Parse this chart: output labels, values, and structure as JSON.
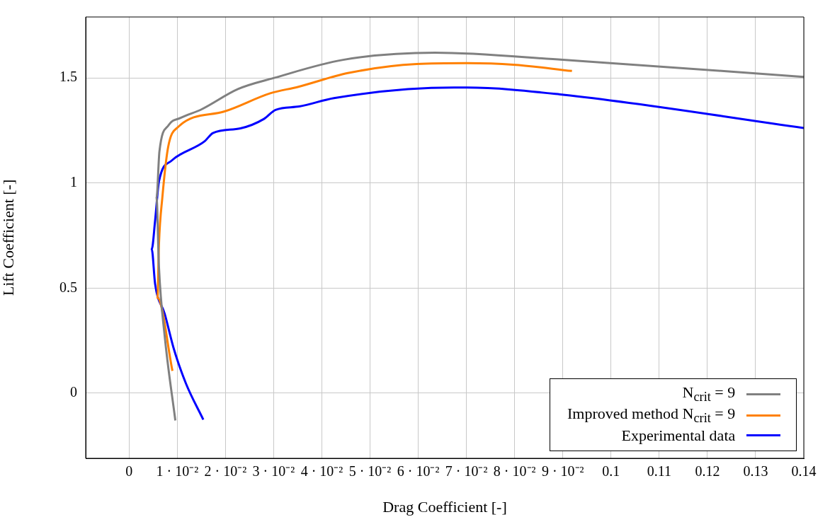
{
  "chart_data": {
    "type": "line",
    "xlabel": "Drag Coefficient [-]",
    "ylabel": "Lift Coefficient [-]",
    "xlim": [
      -0.009,
      0.14
    ],
    "ylim": [
      -0.31,
      1.79
    ],
    "xticks": [
      0,
      {
        "value": 0.01,
        "label": "1 · 10⁻²"
      },
      {
        "value": 0.02,
        "label": "2 · 10⁻²"
      },
      {
        "value": 0.03,
        "label": "3 · 10⁻²"
      },
      {
        "value": 0.04,
        "label": "4 · 10⁻²"
      },
      {
        "value": 0.05,
        "label": "5 · 10⁻²"
      },
      {
        "value": 0.06,
        "label": "6 · 10⁻²"
      },
      {
        "value": 0.07,
        "label": "7 · 10⁻²"
      },
      {
        "value": 0.08,
        "label": "8 · 10⁻²"
      },
      {
        "value": 0.09,
        "label": "9 · 10⁻²"
      },
      0.1,
      0.11,
      0.12,
      0.13,
      0.14
    ],
    "yticks": [
      0,
      0.5,
      1,
      1.5
    ],
    "grid": true,
    "legend": "bottom right",
    "marker": "none",
    "line_style": "solid",
    "series": [
      {
        "name": "N$_{crit}$ = 9",
        "color": "#808080",
        "x": [
          0.0096,
          0.0074,
          0.0062,
          0.0057,
          0.0063,
          0.0082,
          0.0107,
          0.015,
          0.0226,
          0.0301,
          0.0444,
          0.0635,
          0.09,
          0.14
        ],
        "values": [
          -0.13,
          0.27,
          0.6,
          0.93,
          1.15,
          1.275,
          1.31,
          1.35,
          1.447,
          1.5,
          1.586,
          1.62,
          1.586,
          1.505
        ]
      },
      {
        "name": "Improved method N$_{crit}$ = 9",
        "color": "#ff8000",
        "x": [
          0.009,
          0.0059,
          0.0062,
          0.0069,
          0.0081,
          0.0101,
          0.0197,
          0.0293,
          0.035,
          0.0454,
          0.0597,
          0.0701,
          0.0797,
          0.0919
        ],
        "values": [
          0.106,
          0.454,
          0.71,
          0.93,
          1.17,
          1.265,
          1.34,
          1.427,
          1.457,
          1.523,
          1.566,
          1.57,
          1.563,
          1.533
        ]
      },
      {
        "name": "Experimental data",
        "color": "#0000ff",
        "x": [
          0.0154,
          0.0118,
          0.0093,
          0.0074,
          0.0054,
          0.0047,
          0.0054,
          0.0062,
          0.0088,
          0.0157,
          0.0174,
          0.0231,
          0.028,
          0.0304,
          0.0353,
          0.0425,
          0.0674,
          0.0701,
          0.0901,
          0.14
        ],
        "values": [
          -0.126,
          0.046,
          0.21,
          0.377,
          0.52,
          0.685,
          0.82,
          1.007,
          1.106,
          1.199,
          1.238,
          1.26,
          1.305,
          1.348,
          1.364,
          1.404,
          1.454,
          1.454,
          1.42,
          1.262
        ]
      }
    ]
  }
}
